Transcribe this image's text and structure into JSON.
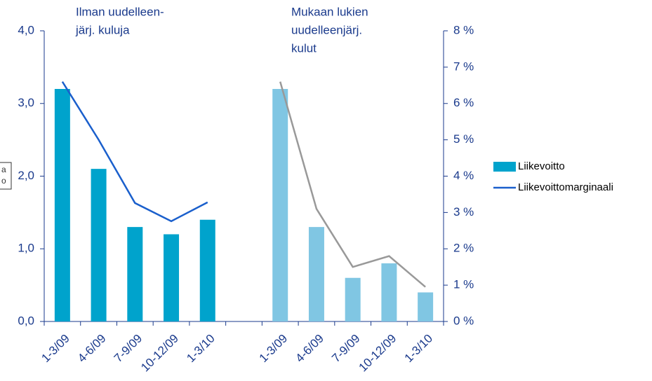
{
  "chart_data": {
    "type": "bar",
    "annotations": [
      {
        "lines": [
          "Ilman uudelleen-",
          "järj. kuluja"
        ]
      },
      {
        "lines": [
          "Mukaan lukien",
          "uudelleenjärj.",
          "kulut"
        ]
      }
    ],
    "side_note": [
      "a",
      "o"
    ],
    "categories": [
      "1-3/09",
      "4-6/09",
      "7-9/09",
      "10-12/09",
      "1-3/10",
      null,
      "1-3/09",
      "4-6/09",
      "7-9/09",
      "10-12/09",
      "1-3/10"
    ],
    "series": [
      {
        "name": "Liikevoitto",
        "type": "bar",
        "color": "#00a3cc",
        "values": [
          3.2,
          2.1,
          1.3,
          1.2,
          1.4,
          null,
          null,
          null,
          null,
          null,
          null
        ]
      },
      {
        "type": "bar",
        "color": "#80c6e3",
        "values": [
          null,
          null,
          null,
          null,
          null,
          null,
          3.2,
          1.3,
          0.6,
          0.8,
          0.4
        ]
      },
      {
        "name": "Liikevoittomarginaali",
        "type": "line",
        "axis": "y2",
        "color": "#1a5fcc",
        "values": [
          6.6,
          5.0,
          3.26,
          2.76,
          3.28,
          null,
          null,
          null,
          null,
          null,
          null
        ]
      },
      {
        "type": "line",
        "axis": "y2",
        "color": "#999999",
        "values": [
          null,
          null,
          null,
          null,
          null,
          null,
          6.6,
          3.1,
          1.5,
          1.8,
          0.95
        ]
      }
    ],
    "ylim": [
      0,
      4
    ],
    "yticks": [
      {
        "value": 0,
        "label": "0,0"
      },
      {
        "value": 1,
        "label": "1,0"
      },
      {
        "value": 2,
        "label": "2,0"
      },
      {
        "value": 3,
        "label": "3,0"
      },
      {
        "value": 4,
        "label": "4,0"
      }
    ],
    "y2lim": [
      0,
      8
    ],
    "y2ticks": [
      {
        "value": 0,
        "label": "0 %"
      },
      {
        "value": 1,
        "label": "1 %"
      },
      {
        "value": 2,
        "label": "2 %"
      },
      {
        "value": 3,
        "label": "3 %"
      },
      {
        "value": 4,
        "label": "4 %"
      },
      {
        "value": 5,
        "label": "5 %"
      },
      {
        "value": 6,
        "label": "6 %"
      },
      {
        "value": 7,
        "label": "7 %"
      },
      {
        "value": 8,
        "label": "8 %"
      }
    ],
    "legend": "right"
  }
}
